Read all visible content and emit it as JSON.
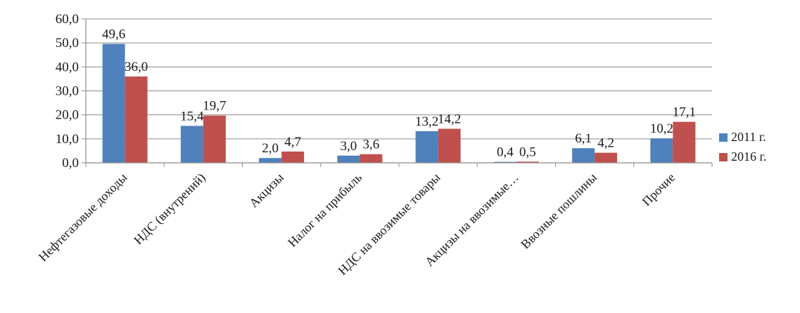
{
  "chart_data": {
    "type": "bar",
    "categories": [
      "Нефтегазовые доходы",
      "НДС (внутрений)",
      "Акцизы",
      "Налог на прибыль",
      "НДС на ввозимые товары",
      "Акцизы на ввозимые…",
      "Ввозные пошлины",
      "Прочие"
    ],
    "series": [
      {
        "name": "2011 г.",
        "color": "#4f81bd",
        "values": [
          49.6,
          15.4,
          2.0,
          3.0,
          13.2,
          0.4,
          6.1,
          10.2
        ],
        "labels": [
          "49,6",
          "15,4",
          "2,0",
          "3,0",
          "13,2",
          "0,4",
          "6,1",
          "10,2"
        ]
      },
      {
        "name": "2016 г.",
        "color": "#c0504d",
        "values": [
          36.0,
          19.7,
          4.7,
          3.6,
          14.2,
          0.5,
          4.2,
          17.1
        ],
        "labels": [
          "36,0",
          "19,7",
          "4,7",
          "3,6",
          "14,2",
          "0,5",
          "4,2",
          "17,1"
        ]
      }
    ],
    "ylim": [
      0,
      60
    ],
    "yticks": [
      0,
      10,
      20,
      30,
      40,
      50,
      60
    ],
    "ytick_labels": [
      "0,0",
      "10,0",
      "20,0",
      "30,0",
      "40,0",
      "50,0",
      "60,0"
    ],
    "grid": true,
    "legend_position": "right"
  }
}
